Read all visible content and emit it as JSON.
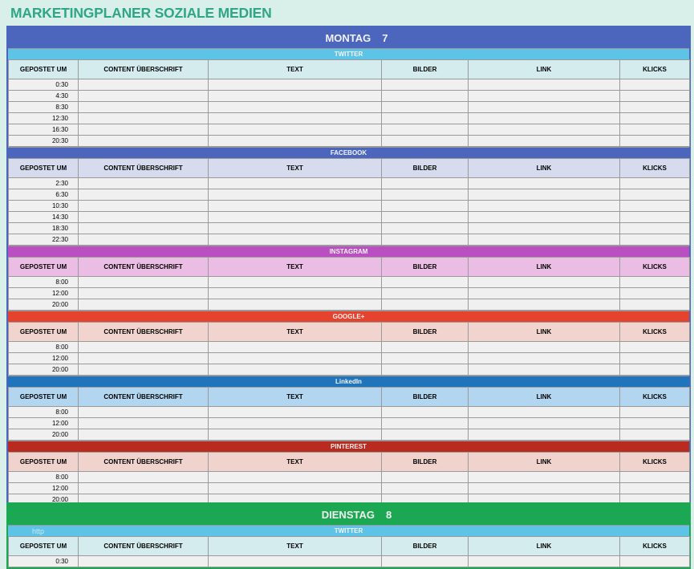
{
  "title": "MARKETINGPLANER SOZIALE MEDIEN",
  "columns": [
    "GEPOSTET UM",
    "CONTENT ÜBERSCHRIFT",
    "TEXT",
    "BILDER",
    "LINK",
    "KLICKS"
  ],
  "days": [
    {
      "name": "MONTAG",
      "date": "7",
      "color": "#4c66be",
      "sections": [
        {
          "network": "TWITTER",
          "bar": "#5dc3e7",
          "header": "#d5ecef",
          "times": [
            "0:30",
            "4:30",
            "8:30",
            "12:30",
            "16:30",
            "20:30"
          ]
        },
        {
          "network": "FACEBOOK",
          "bar": "#4c66be",
          "header": "#d6dbee",
          "times": [
            "2:30",
            "6:30",
            "10:30",
            "14:30",
            "18:30",
            "22:30"
          ]
        },
        {
          "network": "INSTAGRAM",
          "bar": "#b94fc1",
          "header": "#ecbde4",
          "times": [
            "8:00",
            "12:00",
            "20:00"
          ]
        },
        {
          "network": "GOOGLE+",
          "bar": "#e5432d",
          "header": "#f0d4cd",
          "times": [
            "8:00",
            "12:00",
            "20:00"
          ]
        },
        {
          "network": "LinkedIn",
          "bar": "#1f74bc",
          "header": "#b2d6ef",
          "times": [
            "8:00",
            "12:00",
            "20:00"
          ]
        },
        {
          "network": "PINTEREST",
          "bar": "#b92b1f",
          "header": "#efd3cc",
          "times": [
            "8:00",
            "12:00",
            "20:00"
          ]
        }
      ]
    },
    {
      "name": "DIENSTAG",
      "date": "8",
      "color": "#1ca852",
      "overlay": "http",
      "sections": [
        {
          "network": "TWITTER",
          "bar": "#5dc3e7",
          "header": "#d5ecef",
          "times": [
            "0:30"
          ]
        }
      ]
    }
  ]
}
